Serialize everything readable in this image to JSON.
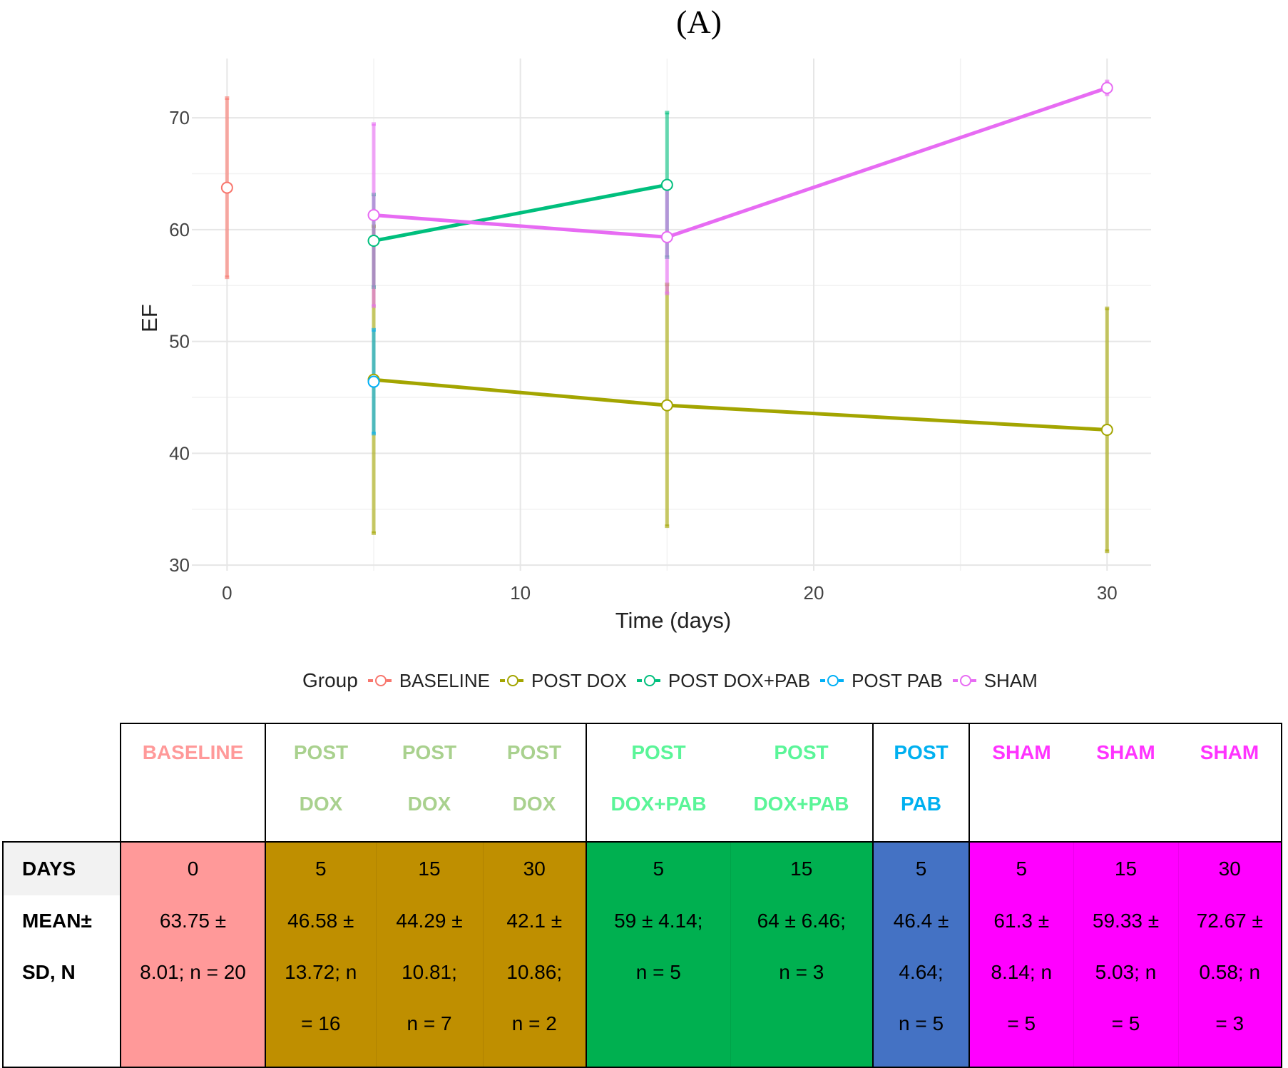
{
  "panel_label": "(A)",
  "chart_data": {
    "type": "line",
    "title": "",
    "xlabel": "Time (days)",
    "ylabel": "EF",
    "xlim": [
      -1.2,
      31.5
    ],
    "ylim": [
      29.5,
      75.3
    ],
    "xticks": [
      0,
      10,
      20,
      30
    ],
    "yticks": [
      30,
      40,
      50,
      60,
      70
    ],
    "grid": true,
    "legend_title": "Group",
    "legend_position": "bottom",
    "series": [
      {
        "name": "BASELINE",
        "color": "#f8766d",
        "x": [
          0
        ],
        "mean": [
          63.75
        ],
        "lower": [
          55.74
        ],
        "upper": [
          71.76
        ]
      },
      {
        "name": "POST DOX",
        "color": "#a3a500",
        "x": [
          5,
          15,
          30
        ],
        "mean": [
          46.58,
          44.29,
          42.1
        ],
        "lower": [
          32.86,
          33.48,
          31.24
        ],
        "upper": [
          60.3,
          55.1,
          52.96
        ]
      },
      {
        "name": "POST DOX+PAB",
        "color": "#00bf7d",
        "x": [
          5,
          15
        ],
        "mean": [
          59,
          64
        ],
        "lower": [
          54.86,
          57.54
        ],
        "upper": [
          63.14,
          70.46
        ]
      },
      {
        "name": "POST PAB",
        "color": "#00b0f6",
        "x": [
          5
        ],
        "mean": [
          46.4
        ],
        "lower": [
          41.76
        ],
        "upper": [
          51.04
        ]
      },
      {
        "name": "SHAM",
        "color": "#e76bf3",
        "x": [
          5,
          15,
          30
        ],
        "mean": [
          61.3,
          59.33,
          72.67
        ],
        "lower": [
          53.16,
          54.3,
          72.09
        ],
        "upper": [
          69.44,
          64.36,
          73.25
        ]
      }
    ]
  },
  "table": {
    "row_labels": {
      "days": "DAYS",
      "mean_line1": "MEAN±",
      "mean_line2": "SD, N"
    },
    "columns": [
      {
        "header1": "BASELINE",
        "header2": "",
        "days": "0",
        "l1": "63.75 ±",
        "l2": "8.01; n = 20",
        "l3": "",
        "header_color": "#ff9999"
      },
      {
        "header1": "POST",
        "header2": "DOX",
        "days": "5",
        "l1": "46.58 ±",
        "l2": "13.72; n",
        "l3": "= 16",
        "header_color": "#a9d18e"
      },
      {
        "header1": "POST",
        "header2": "DOX",
        "days": "15",
        "l1": "44.29 ±",
        "l2": "10.81;",
        "l3": "n = 7",
        "header_color": "#a9d18e"
      },
      {
        "header1": "POST",
        "header2": "DOX",
        "days": "30",
        "l1": "42.1 ±",
        "l2": "10.86;",
        "l3": "n = 2",
        "header_color": "#a9d18e"
      },
      {
        "header1": "POST",
        "header2": "DOX+PAB",
        "days": "5",
        "l1": "59 ± 4.14;",
        "l2": "n = 5",
        "l3": "",
        "header_color": "#5af598"
      },
      {
        "header1": "POST",
        "header2": "DOX+PAB",
        "days": "15",
        "l1": "64 ± 6.46;",
        "l2": "n = 3",
        "l3": "",
        "header_color": "#5af598"
      },
      {
        "header1": "POST",
        "header2": "PAB",
        "days": "5",
        "l1": "46.4 ±",
        "l2": "4.64;",
        "l3": "n = 5",
        "header_color": "#00b0f0"
      },
      {
        "header1": "SHAM",
        "header2": "",
        "days": "5",
        "l1": "61.3 ±",
        "l2": "8.14; n",
        "l3": "= 5",
        "header_color": "#ff33ff"
      },
      {
        "header1": "SHAM",
        "header2": "",
        "days": "15",
        "l1": "59.33 ±",
        "l2": "5.03; n",
        "l3": "= 5",
        "header_color": "#ff33ff"
      },
      {
        "header1": "SHAM",
        "header2": "",
        "days": "30",
        "l1": "72.67 ±",
        "l2": "0.58; n",
        "l3": "= 3",
        "header_color": "#ff33ff"
      }
    ]
  }
}
